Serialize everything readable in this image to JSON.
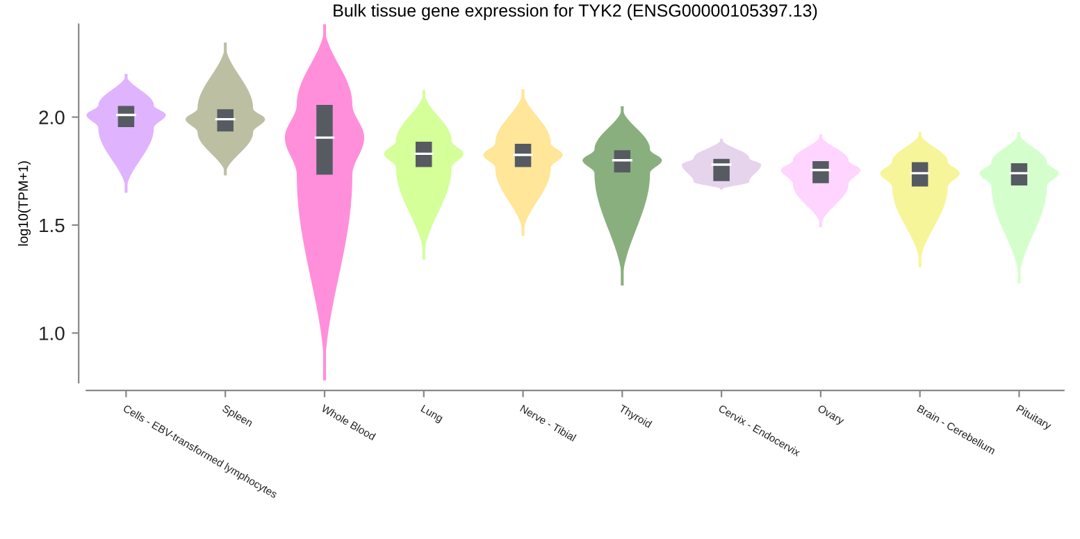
{
  "chart_data": {
    "type": "box",
    "title": "Bulk tissue gene expression for TYK2 (ENSG00000105397.13)",
    "ylabel": "log10(TPM+1)",
    "categories": [
      "Cells - EBV-transformed lymphocytes",
      "Spleen",
      "Whole Blood",
      "Lung",
      "Nerve - Tibial",
      "Thyroid",
      "Cervix - Endocervix",
      "Ovary",
      "Brain - Cerebellum",
      "Pituitary"
    ],
    "colors": [
      "#e0b3ff",
      "#bdbfa3",
      "#ff8fdb",
      "#d4ff99",
      "#ffe699",
      "#8aaf7f",
      "#e6d4ed",
      "#ffd4ff",
      "#f7f599",
      "#d4ffcc"
    ],
    "boxes": [
      {
        "low": 1.65,
        "q1": 1.95,
        "median": 2.01,
        "q3": 2.055,
        "high": 2.2
      },
      {
        "low": 1.73,
        "q1": 1.93,
        "median": 1.99,
        "q3": 2.04,
        "high": 2.345
      },
      {
        "low": 0.78,
        "q1": 1.73,
        "median": 1.905,
        "q3": 2.06,
        "high": 2.43
      },
      {
        "low": 1.34,
        "q1": 1.765,
        "median": 1.83,
        "q3": 1.89,
        "high": 2.125
      },
      {
        "low": 1.45,
        "q1": 1.765,
        "median": 1.825,
        "q3": 1.88,
        "high": 2.13
      },
      {
        "low": 1.22,
        "q1": 1.74,
        "median": 1.8,
        "q3": 1.85,
        "high": 2.05
      },
      {
        "low": 1.665,
        "q1": 1.7,
        "median": 1.78,
        "q3": 1.81,
        "high": 1.9
      },
      {
        "low": 1.49,
        "q1": 1.69,
        "median": 1.755,
        "q3": 1.8,
        "high": 1.92
      },
      {
        "low": 1.305,
        "q1": 1.675,
        "median": 1.74,
        "q3": 1.795,
        "high": 1.93
      },
      {
        "low": 1.23,
        "q1": 1.68,
        "median": 1.74,
        "q3": 1.79,
        "high": 1.93
      }
    ],
    "ylim": [
      0.77,
      2.43
    ],
    "yticks": [
      {
        "value": 1.0,
        "label": "1.0"
      },
      {
        "value": 1.5,
        "label": "1.5"
      },
      {
        "value": 2.0,
        "label": "2.0"
      }
    ],
    "grid": false
  }
}
